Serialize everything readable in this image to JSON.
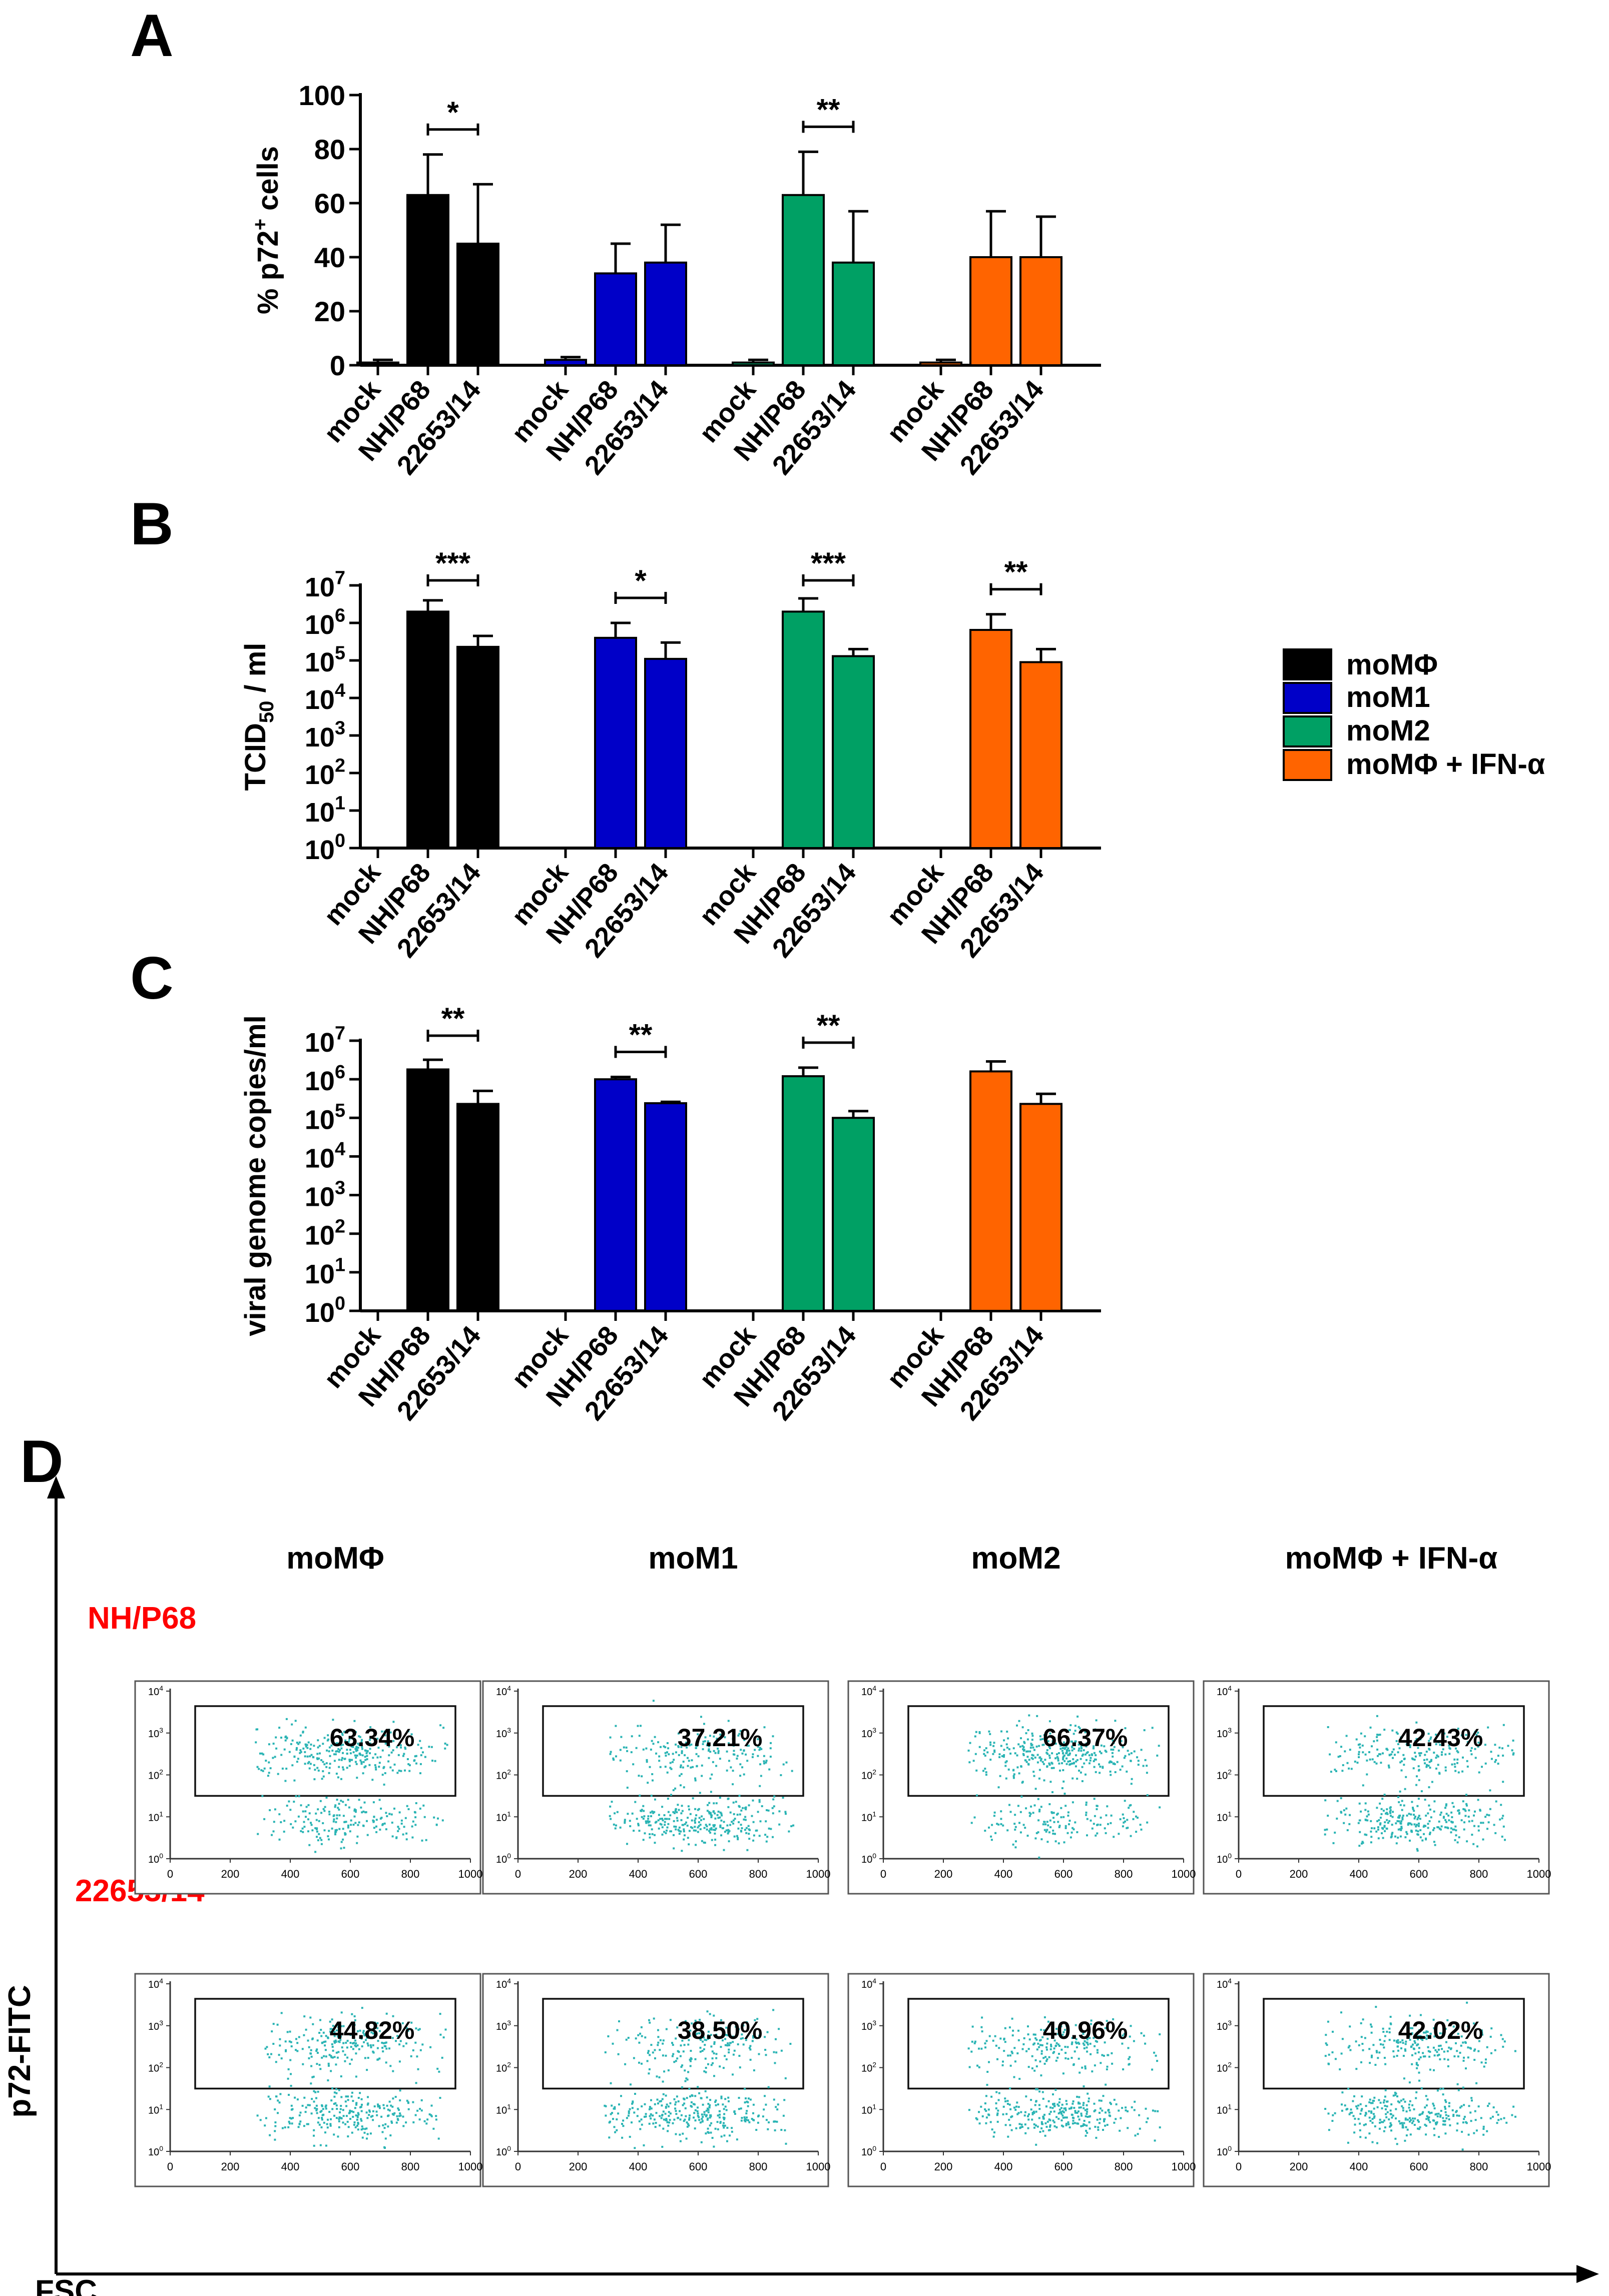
{
  "chart_data": [
    {
      "type": "bar",
      "panel": "A",
      "ylabel": "% p72+ cells",
      "ylim": [
        0,
        100
      ],
      "yticks": [
        "0",
        "20",
        "40",
        "60",
        "80",
        "100"
      ],
      "groups": [
        {
          "name": "moMΦ",
          "color": "#000000",
          "categories": [
            "mock",
            "NH/P68",
            "22653/14"
          ],
          "values": [
            1,
            63,
            45
          ],
          "errors": [
            1,
            15,
            22
          ]
        },
        {
          "name": "moM1",
          "color": "#0000c8",
          "categories": [
            "mock",
            "NH/P68",
            "22653/14"
          ],
          "values": [
            2,
            34,
            38
          ],
          "errors": [
            1,
            11,
            14
          ]
        },
        {
          "name": "moM2",
          "color": "#00a064",
          "categories": [
            "mock",
            "NH/P68",
            "22653/14"
          ],
          "values": [
            1,
            63,
            38
          ],
          "errors": [
            1,
            16,
            19
          ]
        },
        {
          "name": "moMΦ + IFN-α",
          "color": "#ff6400",
          "categories": [
            "mock",
            "NH/P68",
            "22653/14"
          ],
          "values": [
            1,
            40,
            40
          ],
          "errors": [
            1,
            17,
            15
          ]
        }
      ],
      "significance": [
        {
          "group": 0,
          "label": "*"
        },
        {
          "group": 2,
          "label": "**"
        }
      ]
    },
    {
      "type": "bar",
      "panel": "B",
      "ylabel": "TCID50 / ml",
      "scale": "log",
      "ylim": [
        1,
        10000000
      ],
      "yticks": [
        "10^0",
        "10^1",
        "10^2",
        "10^3",
        "10^4",
        "10^5",
        "10^6",
        "10^7"
      ],
      "groups": [
        {
          "name": "moMΦ",
          "color": "#000000",
          "categories": [
            "mock",
            "NH/P68",
            "22653/14"
          ],
          "values": [
            null,
            2000000,
            230000
          ],
          "errors_upper": [
            null,
            4000000,
            450000
          ]
        },
        {
          "name": "moM1",
          "color": "#0000c8",
          "categories": [
            "mock",
            "NH/P68",
            "22653/14"
          ],
          "values": [
            null,
            400000,
            110000
          ],
          "errors_upper": [
            null,
            1000000,
            300000
          ]
        },
        {
          "name": "moM2",
          "color": "#00a064",
          "categories": [
            "mock",
            "NH/P68",
            "22653/14"
          ],
          "values": [
            null,
            2000000,
            130000
          ],
          "errors_upper": [
            null,
            4500000,
            200000
          ]
        },
        {
          "name": "moMΦ + IFN-α",
          "color": "#ff6400",
          "categories": [
            "mock",
            "NH/P68",
            "22653/14"
          ],
          "values": [
            null,
            650000,
            90000
          ],
          "errors_upper": [
            null,
            1700000,
            200000
          ]
        }
      ],
      "significance": [
        {
          "group": 0,
          "label": "***"
        },
        {
          "group": 1,
          "label": "*"
        },
        {
          "group": 2,
          "label": "***"
        },
        {
          "group": 3,
          "label": "**"
        }
      ]
    },
    {
      "type": "bar",
      "panel": "C",
      "ylabel": "viral genome copies/ml",
      "scale": "log",
      "ylim": [
        1,
        10000000
      ],
      "yticks": [
        "10^0",
        "10^1",
        "10^2",
        "10^3",
        "10^4",
        "10^5",
        "10^6",
        "10^7"
      ],
      "groups": [
        {
          "name": "moMΦ",
          "color": "#000000",
          "categories": [
            "mock",
            "NH/P68",
            "22653/14"
          ],
          "values": [
            null,
            1800000,
            230000
          ],
          "errors_upper": [
            null,
            3200000,
            500000
          ]
        },
        {
          "name": "moM1",
          "color": "#0000c8",
          "categories": [
            "mock",
            "NH/P68",
            "22653/14"
          ],
          "values": [
            null,
            1000000,
            240000
          ],
          "errors_upper": [
            null,
            1150000,
            260000
          ]
        },
        {
          "name": "moM2",
          "color": "#00a064",
          "categories": [
            "mock",
            "NH/P68",
            "22653/14"
          ],
          "values": [
            null,
            1200000,
            100000
          ],
          "errors_upper": [
            null,
            2000000,
            150000
          ]
        },
        {
          "name": "moMΦ + IFN-α",
          "color": "#ff6400",
          "categories": [
            "mock",
            "NH/P68",
            "22653/14"
          ],
          "values": [
            null,
            1600000,
            230000
          ],
          "errors_upper": [
            null,
            2900000,
            420000
          ]
        }
      ],
      "significance": [
        {
          "group": 0,
          "label": "**"
        },
        {
          "group": 1,
          "label": "**"
        },
        {
          "group": 2,
          "label": "**"
        }
      ]
    }
  ],
  "legend": {
    "entries": [
      {
        "label": "moMΦ",
        "color": "#000000"
      },
      {
        "label": "moM1",
        "color": "#0000c8"
      },
      {
        "label": "moM2",
        "color": "#00a064"
      },
      {
        "label": "moMΦ + IFN-α",
        "color": "#ff6400"
      }
    ]
  },
  "panel_labels": [
    "A",
    "B",
    "C",
    "D"
  ],
  "flow": {
    "columns": [
      "moMΦ",
      "moM1",
      "moM2",
      "moMΦ + IFN-α"
    ],
    "rows": [
      {
        "label": "NH/P68",
        "label_color": "#ff0000",
        "percentages": [
          "63.34%",
          "37.21%",
          "66.37%",
          "42.43%"
        ]
      },
      {
        "label": "22653/14",
        "label_color": "#ff0000",
        "percentages": [
          "44.82%",
          "38.50%",
          "40.96%",
          "42.02%"
        ]
      }
    ],
    "x_axis_label": "FSC",
    "y_axis_label": "p72-FITC",
    "x_ticks": [
      "0",
      "200",
      "400",
      "600",
      "800",
      "1000"
    ],
    "y_ticks": [
      "10^0",
      "10^1",
      "10^2",
      "10^3",
      "10^4"
    ],
    "dot_color": "#2ab4b4"
  }
}
